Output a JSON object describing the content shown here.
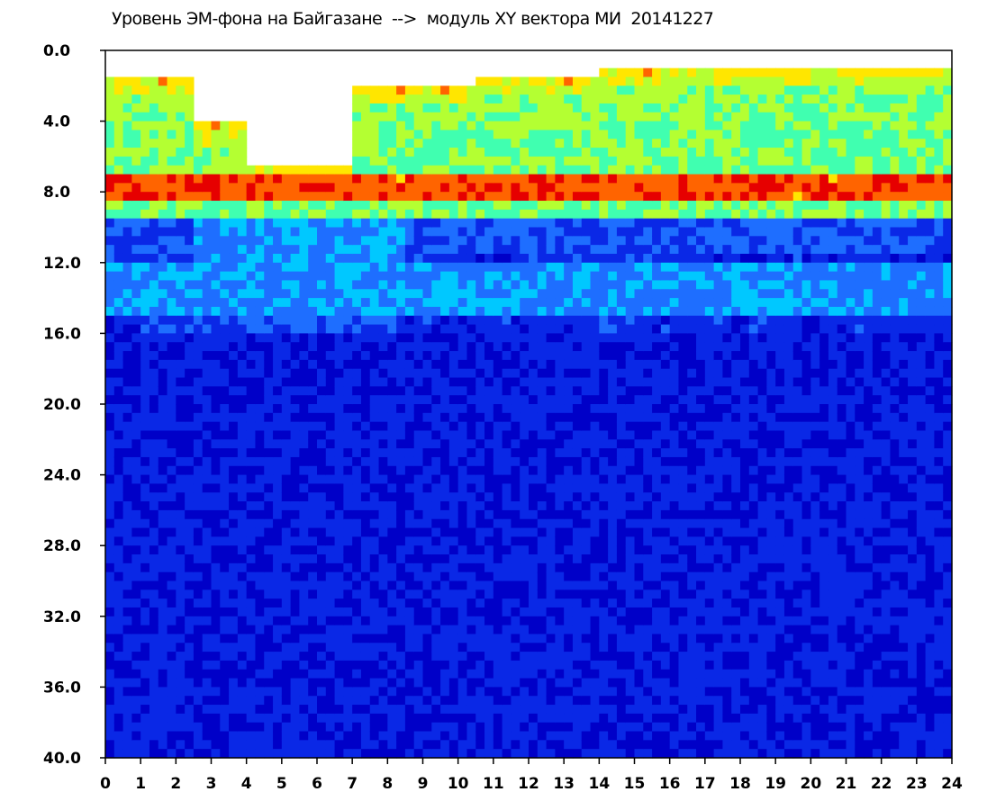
{
  "chart_data": {
    "type": "heatmap",
    "title": "Уровень ЭМ-фона на Байгазане  -->  модуль XY вектора МИ  20141227",
    "xlabel": "",
    "ylabel": "",
    "x_range": [
      0,
      24
    ],
    "y_range": [
      0.0,
      40.0
    ],
    "y_inverted": true,
    "x_ticks": [
      "0",
      "1",
      "2",
      "3",
      "4",
      "5",
      "6",
      "7",
      "8",
      "9",
      "10",
      "11",
      "12",
      "13",
      "14",
      "15",
      "16",
      "17",
      "18",
      "19",
      "20",
      "21",
      "22",
      "23",
      "24"
    ],
    "y_ticks": [
      "0.0",
      "4.0",
      "8.0",
      "12.0",
      "16.0",
      "20.0",
      "24.0",
      "28.0",
      "32.0",
      "36.0",
      "40.0"
    ],
    "grid": false,
    "legend": "none",
    "colormap": [
      "#0000c8",
      "#0a28e6",
      "#1e6eff",
      "#00c8ff",
      "#40ffb0",
      "#b4ff32",
      "#ffe600",
      "#ff6400",
      "#e60000"
    ],
    "description_bands": {
      "strong_band_y": [
        7.0,
        8.5
      ],
      "upper_active_top_y": [
        1.0,
        6.0
      ],
      "secondary_band_y": [
        12.0,
        15.0
      ],
      "quiet_gap_x": [
        4.0,
        7.0
      ]
    }
  }
}
